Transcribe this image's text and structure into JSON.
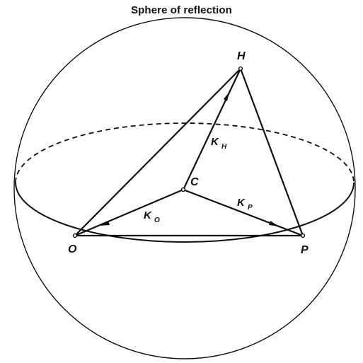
{
  "title": "Sphere of reflection",
  "points": {
    "H": "H",
    "C": "C",
    "O": "O",
    "P": "P"
  },
  "vectors": {
    "k_h": {
      "main": "K",
      "sub": "H"
    },
    "k_o": {
      "main": "K",
      "sub": "O"
    },
    "k_p": {
      "main": "K",
      "sub": "P"
    }
  }
}
